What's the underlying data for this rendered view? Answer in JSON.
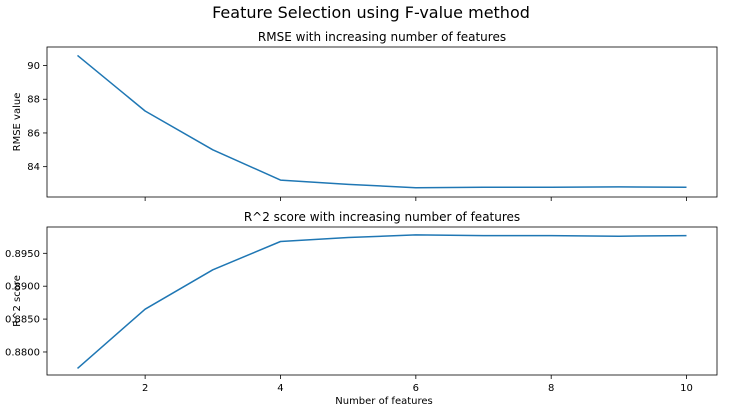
{
  "figure": {
    "suptitle": "Feature Selection using F-value method"
  },
  "chart_data": [
    {
      "type": "line",
      "title": "RMSE with increasing number of features",
      "xlabel": "",
      "ylabel": "RMSE value",
      "xlim": [
        0.55,
        10.45
      ],
      "ylim": [
        82.2,
        91.1
      ],
      "xticks": [
        2,
        4,
        6,
        8,
        10
      ],
      "yticks": [
        84,
        86,
        88,
        90
      ],
      "x": [
        1,
        2,
        3,
        4,
        5,
        6,
        7,
        8,
        9,
        10
      ],
      "series": [
        {
          "values": [
            90.6,
            87.3,
            85.0,
            83.2,
            82.95,
            82.75,
            82.78,
            82.78,
            82.8,
            82.78
          ]
        }
      ],
      "line_color": "#1f77b4",
      "show_xtick_labels": false
    },
    {
      "type": "line",
      "title": "R^2 score with increasing number of features",
      "xlabel": "Number of features",
      "ylabel": "R^2 score",
      "xlim": [
        0.55,
        10.45
      ],
      "ylim": [
        0.8765,
        0.899
      ],
      "xticks": [
        2,
        4,
        6,
        8,
        10
      ],
      "yticks": [
        0.88,
        0.885,
        0.89,
        0.895
      ],
      "x": [
        1,
        2,
        3,
        4,
        5,
        6,
        7,
        8,
        9,
        10
      ],
      "series": [
        {
          "values": [
            0.8775,
            0.8865,
            0.8925,
            0.8968,
            0.8974,
            0.8978,
            0.8977,
            0.8977,
            0.8976,
            0.8977
          ]
        }
      ],
      "line_color": "#1f77b4",
      "show_xtick_labels": true
    }
  ]
}
